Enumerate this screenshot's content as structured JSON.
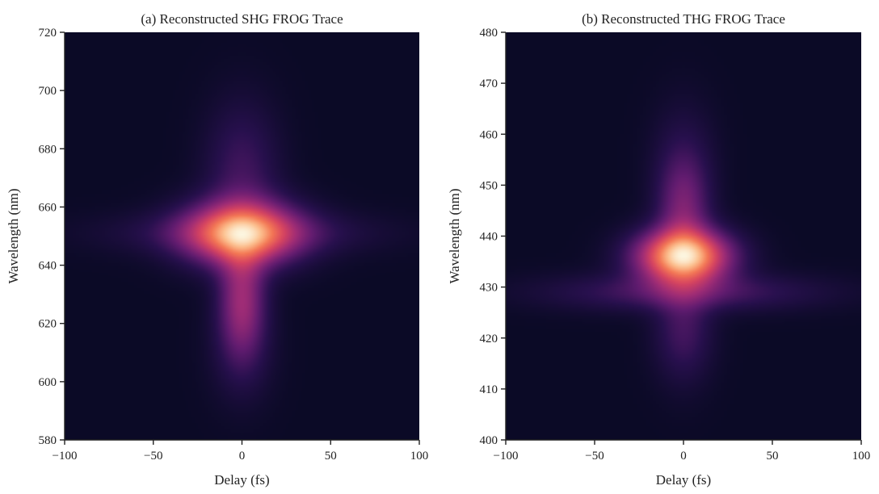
{
  "chart_data": [
    {
      "type": "heatmap",
      "title": "(a) Reconstructed SHG FROG Trace",
      "xlabel": "Delay (fs)",
      "ylabel": "Wavelength (nm)",
      "xlim": [
        -100,
        100
      ],
      "ylim": [
        580,
        720
      ],
      "xticks": [
        -100,
        -50,
        0,
        50,
        100
      ],
      "xtick_labels": [
        "−100",
        "−50",
        "0",
        "50",
        "100"
      ],
      "yticks": [
        580,
        600,
        620,
        640,
        660,
        680,
        700,
        720
      ],
      "ytick_labels": [
        "580",
        "600",
        "620",
        "640",
        "660",
        "680",
        "700",
        "720"
      ],
      "colormap": "magma",
      "background_color": "#0b0a26",
      "peak": {
        "delay": 0,
        "wavelength": 651,
        "intensity": 1.0
      },
      "components": [
        {
          "delay": 0,
          "wavelength": 651,
          "sigma_delay": 22,
          "sigma_wavelength": 7.5,
          "amplitude": 1.0
        },
        {
          "delay": 0,
          "wavelength": 628,
          "sigma_delay": 9,
          "sigma_wavelength": 13,
          "amplitude": 0.5
        },
        {
          "delay": 0,
          "wavelength": 651,
          "sigma_delay": 48,
          "sigma_wavelength": 5,
          "amplitude": 0.2
        },
        {
          "delay": 0,
          "wavelength": 672,
          "sigma_delay": 14,
          "sigma_wavelength": 16,
          "amplitude": 0.22
        },
        {
          "delay": 0,
          "wavelength": 610,
          "sigma_delay": 12,
          "sigma_wavelength": 12,
          "amplitude": 0.12
        }
      ]
    },
    {
      "type": "heatmap",
      "title": "(b) Reconstructed THG FROG Trace",
      "xlabel": "Delay (fs)",
      "ylabel": "Wavelength (nm)",
      "xlim": [
        -100,
        100
      ],
      "ylim": [
        400,
        480
      ],
      "xticks": [
        -100,
        -50,
        0,
        50,
        100
      ],
      "xtick_labels": [
        "−100",
        "−50",
        "0",
        "50",
        "100"
      ],
      "yticks": [
        400,
        410,
        420,
        430,
        440,
        450,
        460,
        470,
        480
      ],
      "ytick_labels": [
        "400",
        "410",
        "420",
        "430",
        "440",
        "450",
        "460",
        "470",
        "480"
      ],
      "colormap": "magma",
      "background_color": "#0b0a26",
      "peak": {
        "delay": 0,
        "wavelength": 436,
        "intensity": 1.0
      },
      "components": [
        {
          "delay": 0,
          "wavelength": 436,
          "sigma_delay": 18,
          "sigma_wavelength": 3.6,
          "amplitude": 1.0
        },
        {
          "delay": 0,
          "wavelength": 429,
          "sigma_delay": 50,
          "sigma_wavelength": 2.5,
          "amplitude": 0.22
        },
        {
          "delay": 0,
          "wavelength": 445,
          "sigma_delay": 10,
          "sigma_wavelength": 7,
          "amplitude": 0.3
        },
        {
          "delay": 0,
          "wavelength": 422,
          "sigma_delay": 11,
          "sigma_wavelength": 7,
          "amplitude": 0.2
        },
        {
          "delay": 0,
          "wavelength": 455,
          "sigma_delay": 12,
          "sigma_wavelength": 8,
          "amplitude": 0.1
        }
      ]
    }
  ]
}
